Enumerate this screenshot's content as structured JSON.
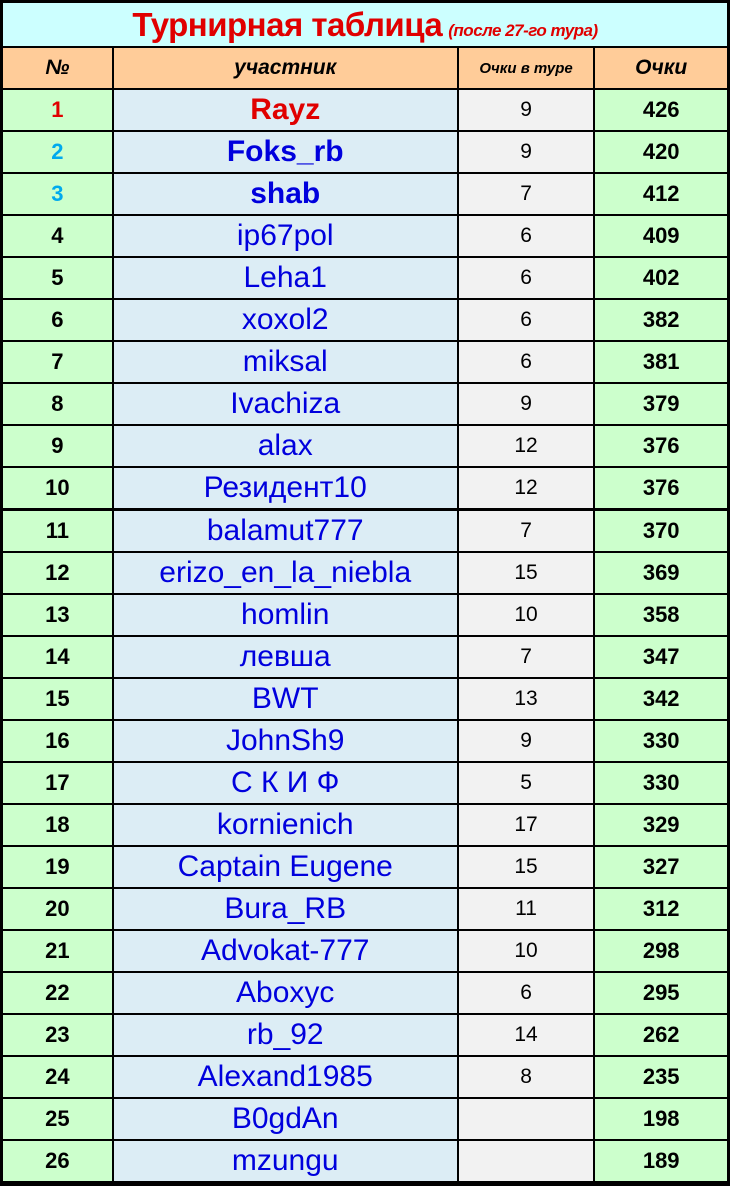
{
  "title": "Турнирная таблица",
  "subtitle": "(после 27-го тура)",
  "headers": [
    "№",
    "участник",
    "Очки в туре",
    "Очки"
  ],
  "rows": [
    [
      "1",
      "Rayz",
      "9",
      "426"
    ],
    [
      "2",
      "Foks_rb",
      "9",
      "420"
    ],
    [
      "3",
      "shab",
      "7",
      "412"
    ],
    [
      "4",
      "ip67pol",
      "6",
      "409"
    ],
    [
      "5",
      "Leha1",
      "6",
      "402"
    ],
    [
      "6",
      "xoxol2",
      "6",
      "382"
    ],
    [
      "7",
      "miksal",
      "6",
      "381"
    ],
    [
      "8",
      "Ivachiza",
      "9",
      "379"
    ],
    [
      "9",
      "alax",
      "12",
      "376"
    ],
    [
      "10",
      "Резидент10",
      "12",
      "376"
    ],
    [
      "11",
      "balamut777",
      "7",
      "370"
    ],
    [
      "12",
      "erizo_en_la_niebla",
      "15",
      "369"
    ],
    [
      "13",
      "homlin",
      "10",
      "358"
    ],
    [
      "14",
      "левша",
      "7",
      "347"
    ],
    [
      "15",
      "BWT",
      "13",
      "342"
    ],
    [
      "16",
      "JohnSh9",
      "9",
      "330"
    ],
    [
      "17",
      "С К И Ф",
      "5",
      "330"
    ],
    [
      "18",
      "kornienich",
      "17",
      "329"
    ],
    [
      "19",
      "Captain Eugene",
      "15",
      "327"
    ],
    [
      "20",
      "Bura_RB",
      "11",
      "312"
    ],
    [
      "21",
      "Advokat-777",
      "10",
      "298"
    ],
    [
      "22",
      "Aboxyc",
      "6",
      "295"
    ],
    [
      "23",
      "rb_92",
      "14",
      "262"
    ],
    [
      "24",
      "Alexand1985",
      "8",
      "235"
    ],
    [
      "25",
      "B0gdAn",
      "",
      "198"
    ],
    [
      "26",
      "mzungu",
      "",
      "189"
    ]
  ],
  "colors": {
    "title": "#e00000",
    "leader": "#e00000",
    "podium_rank": "#00aaee",
    "name": "#0000dd",
    "title_bg": "#ccffff",
    "header_bg": "#ffcc99",
    "rank_bg": "#ccffcc",
    "name_bg": "#dcedf5"
  }
}
